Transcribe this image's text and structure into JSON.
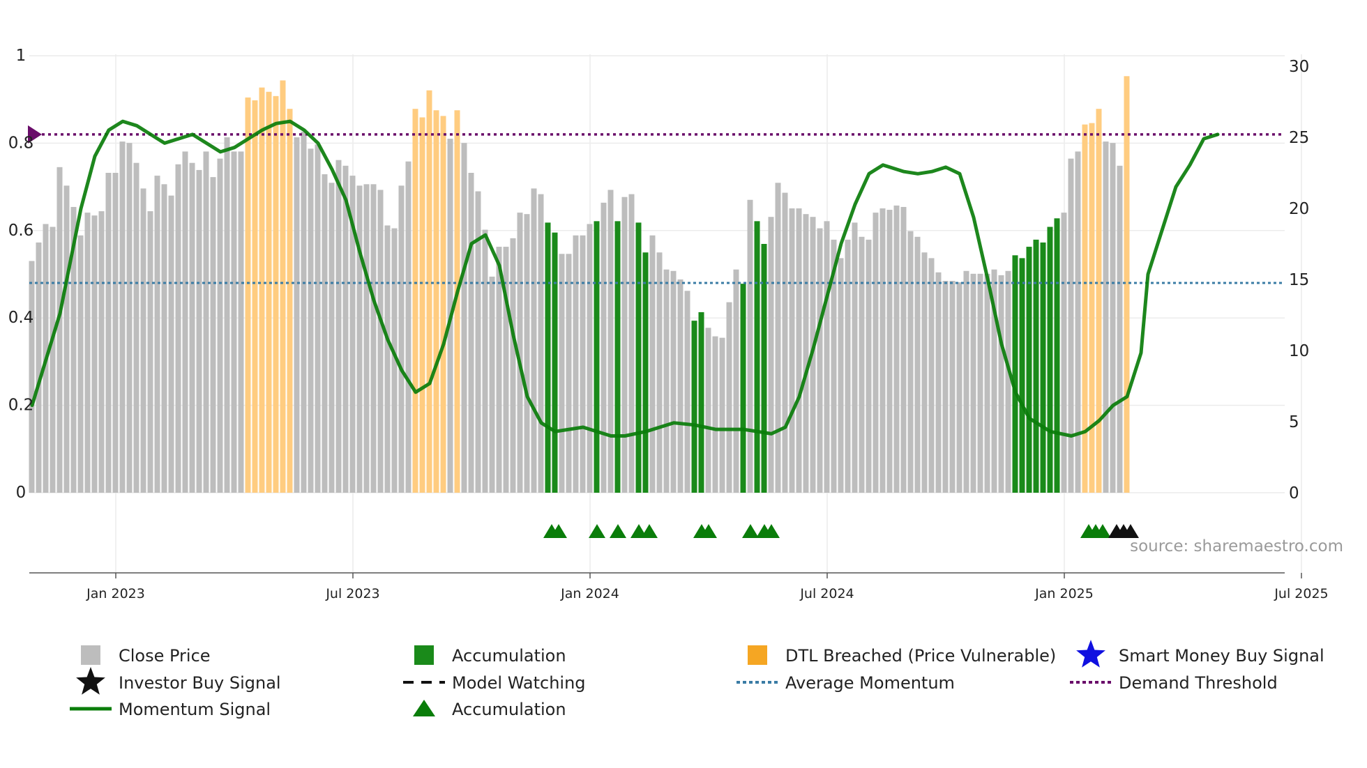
{
  "chart_data": {
    "type": "bar",
    "colors": {
      "close": "#bdbdbd",
      "accumulation": "#1a8a1a",
      "dtl": "#ffcc80",
      "dtl_legend": "#f5a623",
      "momentum": "#0a7d0a",
      "avg_momentum": "#3a7ca5",
      "demand": "#6a0d6a",
      "smart_money": "#1010e0",
      "investor": "#111111",
      "accum_marker": "#0a7d0a"
    },
    "left_axis": {
      "min": 0,
      "max": 1,
      "ticks": [
        "0",
        "0.2",
        "0.4",
        "0.6",
        "0.8",
        "1"
      ]
    },
    "right_axis": {
      "min": 0,
      "max": 30,
      "ticks": [
        "0",
        "5",
        "10",
        "15",
        "20",
        "25",
        "30"
      ]
    },
    "x_ticks": [
      "Jan 2023",
      "Jul 2023",
      "Jan 2024",
      "Jul 2024",
      "Jan 2025",
      "Jul 2025"
    ],
    "x_tick_weeks": [
      12,
      46,
      80,
      114,
      148,
      182
    ],
    "bars": [
      [
        16.3,
        0
      ],
      [
        17.6,
        0
      ],
      [
        18.9,
        0
      ],
      [
        18.7,
        0
      ],
      [
        22.9,
        0
      ],
      [
        21.6,
        0
      ],
      [
        20.1,
        0
      ],
      [
        18.1,
        0
      ],
      [
        19.7,
        0
      ],
      [
        19.5,
        0
      ],
      [
        19.8,
        0
      ],
      [
        22.5,
        0
      ],
      [
        22.5,
        0
      ],
      [
        24.7,
        0
      ],
      [
        24.6,
        0
      ],
      [
        23.2,
        0
      ],
      [
        21.4,
        0
      ],
      [
        19.8,
        0
      ],
      [
        22.3,
        0
      ],
      [
        21.7,
        0
      ],
      [
        20.9,
        0
      ],
      [
        23.1,
        0
      ],
      [
        24.0,
        0
      ],
      [
        23.2,
        0
      ],
      [
        22.7,
        0
      ],
      [
        24.0,
        0
      ],
      [
        22.2,
        0
      ],
      [
        23.5,
        0
      ],
      [
        25.0,
        0
      ],
      [
        24.0,
        0
      ],
      [
        24.0,
        0
      ],
      [
        27.8,
        2
      ],
      [
        27.6,
        2
      ],
      [
        28.5,
        2
      ],
      [
        28.2,
        2
      ],
      [
        27.9,
        2
      ],
      [
        29.0,
        2
      ],
      [
        27.0,
        2
      ],
      [
        25.0,
        0
      ],
      [
        25.4,
        0
      ],
      [
        24.2,
        0
      ],
      [
        24.5,
        0
      ],
      [
        22.4,
        0
      ],
      [
        21.8,
        0
      ],
      [
        23.4,
        0
      ],
      [
        23.0,
        0
      ],
      [
        22.3,
        0
      ],
      [
        21.6,
        0
      ],
      [
        21.7,
        0
      ],
      [
        21.7,
        0
      ],
      [
        21.3,
        0
      ],
      [
        18.8,
        0
      ],
      [
        18.6,
        0
      ],
      [
        21.6,
        0
      ],
      [
        23.3,
        0
      ],
      [
        27.0,
        2
      ],
      [
        26.4,
        2
      ],
      [
        28.3,
        2
      ],
      [
        26.9,
        2
      ],
      [
        26.5,
        2
      ],
      [
        24.9,
        0
      ],
      [
        26.9,
        2
      ],
      [
        24.6,
        0
      ],
      [
        22.5,
        0
      ],
      [
        21.2,
        0
      ],
      [
        18.5,
        0
      ],
      [
        15.2,
        0
      ],
      [
        17.3,
        0
      ],
      [
        17.3,
        0
      ],
      [
        17.9,
        0
      ],
      [
        19.7,
        0
      ],
      [
        19.6,
        0
      ],
      [
        21.4,
        0
      ],
      [
        21.0,
        0
      ],
      [
        19.0,
        1
      ],
      [
        18.3,
        1
      ],
      [
        16.8,
        0
      ],
      [
        16.8,
        0
      ],
      [
        18.1,
        0
      ],
      [
        18.1,
        0
      ],
      [
        18.9,
        0
      ],
      [
        19.1,
        1
      ],
      [
        20.4,
        0
      ],
      [
        21.3,
        0
      ],
      [
        19.1,
        1
      ],
      [
        20.8,
        0
      ],
      [
        21.0,
        0
      ],
      [
        19.0,
        1
      ],
      [
        16.9,
        1
      ],
      [
        18.1,
        0
      ],
      [
        16.9,
        0
      ],
      [
        15.7,
        0
      ],
      [
        15.6,
        0
      ],
      [
        15.0,
        0
      ],
      [
        14.2,
        0
      ],
      [
        12.1,
        1
      ],
      [
        12.7,
        1
      ],
      [
        11.6,
        0
      ],
      [
        11.0,
        0
      ],
      [
        10.9,
        0
      ],
      [
        13.4,
        0
      ],
      [
        15.7,
        0
      ],
      [
        14.7,
        1
      ],
      [
        20.6,
        0
      ],
      [
        19.1,
        1
      ],
      [
        17.5,
        1
      ],
      [
        19.4,
        0
      ],
      [
        21.8,
        0
      ],
      [
        21.1,
        0
      ],
      [
        20.0,
        0
      ],
      [
        20.0,
        0
      ],
      [
        19.6,
        0
      ],
      [
        19.4,
        0
      ],
      [
        18.6,
        0
      ],
      [
        19.1,
        0
      ],
      [
        17.8,
        0
      ],
      [
        16.5,
        0
      ],
      [
        17.8,
        0
      ],
      [
        19.0,
        0
      ],
      [
        18.0,
        0
      ],
      [
        17.8,
        0
      ],
      [
        19.7,
        0
      ],
      [
        20.0,
        0
      ],
      [
        19.9,
        0
      ],
      [
        20.2,
        0
      ],
      [
        20.1,
        0
      ],
      [
        18.4,
        0
      ],
      [
        18.0,
        0
      ],
      [
        16.9,
        0
      ],
      [
        16.5,
        0
      ],
      [
        15.5,
        0
      ],
      [
        14.9,
        0
      ],
      [
        14.9,
        0
      ],
      [
        14.8,
        0
      ],
      [
        15.6,
        0
      ],
      [
        15.4,
        0
      ],
      [
        15.4,
        0
      ],
      [
        15.4,
        0
      ],
      [
        15.7,
        0
      ],
      [
        15.3,
        0
      ],
      [
        15.6,
        0
      ],
      [
        16.7,
        1
      ],
      [
        16.5,
        1
      ],
      [
        17.3,
        1
      ],
      [
        17.8,
        1
      ],
      [
        17.6,
        1
      ],
      [
        18.7,
        1
      ],
      [
        19.3,
        1
      ],
      [
        19.7,
        0
      ],
      [
        23.5,
        0
      ],
      [
        24.0,
        0
      ],
      [
        25.9,
        2
      ],
      [
        26.0,
        2
      ],
      [
        27.0,
        2
      ],
      [
        24.7,
        0
      ],
      [
        24.6,
        0
      ],
      [
        23.0,
        0
      ],
      [
        29.3,
        2
      ]
    ],
    "momentum": [
      [
        0,
        0.2
      ],
      [
        4,
        0.41
      ],
      [
        7,
        0.65
      ],
      [
        9,
        0.77
      ],
      [
        11,
        0.83
      ],
      [
        13,
        0.85
      ],
      [
        15,
        0.84
      ],
      [
        17,
        0.82
      ],
      [
        19,
        0.8
      ],
      [
        21,
        0.81
      ],
      [
        23,
        0.82
      ],
      [
        25,
        0.8
      ],
      [
        27,
        0.78
      ],
      [
        29,
        0.79
      ],
      [
        31,
        0.81
      ],
      [
        33,
        0.83
      ],
      [
        35,
        0.845
      ],
      [
        37,
        0.85
      ],
      [
        39,
        0.83
      ],
      [
        41,
        0.8
      ],
      [
        43,
        0.74
      ],
      [
        45,
        0.67
      ],
      [
        47,
        0.55
      ],
      [
        49,
        0.44
      ],
      [
        51,
        0.35
      ],
      [
        53,
        0.28
      ],
      [
        55,
        0.23
      ],
      [
        57,
        0.25
      ],
      [
        59,
        0.34
      ],
      [
        61,
        0.46
      ],
      [
        63,
        0.57
      ],
      [
        65,
        0.59
      ],
      [
        67,
        0.52
      ],
      [
        69,
        0.36
      ],
      [
        71,
        0.22
      ],
      [
        73,
        0.16
      ],
      [
        75,
        0.14
      ],
      [
        79,
        0.15
      ],
      [
        83,
        0.13
      ],
      [
        85,
        0.13
      ],
      [
        88,
        0.14
      ],
      [
        92,
        0.16
      ],
      [
        95,
        0.155
      ],
      [
        98,
        0.145
      ],
      [
        102,
        0.145
      ],
      [
        104,
        0.14
      ],
      [
        106,
        0.135
      ],
      [
        108,
        0.15
      ],
      [
        110,
        0.22
      ],
      [
        112,
        0.33
      ],
      [
        114,
        0.45
      ],
      [
        116,
        0.57
      ],
      [
        118,
        0.66
      ],
      [
        120,
        0.73
      ],
      [
        122,
        0.75
      ],
      [
        125,
        0.735
      ],
      [
        127,
        0.73
      ],
      [
        129,
        0.735
      ],
      [
        131,
        0.745
      ],
      [
        133,
        0.73
      ],
      [
        135,
        0.63
      ],
      [
        137,
        0.49
      ],
      [
        139,
        0.34
      ],
      [
        141,
        0.23
      ],
      [
        143,
        0.17
      ],
      [
        146,
        0.14
      ],
      [
        149,
        0.13
      ],
      [
        151,
        0.14
      ],
      [
        153,
        0.165
      ],
      [
        155,
        0.2
      ],
      [
        157,
        0.22
      ],
      [
        159,
        0.32
      ],
      [
        160,
        0.5
      ],
      [
        162,
        0.6
      ],
      [
        164,
        0.7
      ],
      [
        166,
        0.75
      ],
      [
        168,
        0.81
      ],
      [
        170,
        0.82
      ]
    ],
    "avg_momentum": 0.48,
    "demand_threshold": 0.82,
    "accumulation_markers": [
      74.5,
      75.5,
      81,
      84,
      87,
      88.5,
      96,
      97,
      103,
      105,
      106,
      151.5,
      152.5,
      153.5
    ],
    "investor_markers": [
      155.5,
      156.5,
      157.5
    ],
    "watermark": "source: sharemaestro.com",
    "legend": [
      {
        "label": "Close Price",
        "kind": "square",
        "color": "#bdbdbd"
      },
      {
        "label": "Accumulation",
        "kind": "square",
        "color": "#1a8a1a"
      },
      {
        "label": "DTL Breached (Price Vulnerable)",
        "kind": "square",
        "color": "#f5a623"
      },
      {
        "label": "Smart Money Buy Signal",
        "kind": "star",
        "color": "#1010e0"
      },
      {
        "label": "Investor Buy Signal",
        "kind": "star",
        "color": "#111111"
      },
      {
        "label": "Model Watching",
        "kind": "dash",
        "color": "#111111"
      },
      {
        "label": "Average Momentum",
        "kind": "dot",
        "color": "#3a7ca5"
      },
      {
        "label": "Demand Threshold",
        "kind": "dot",
        "color": "#6a0d6a"
      },
      {
        "label": "Momentum Signal",
        "kind": "line",
        "color": "#0a7d0a"
      },
      {
        "label": "Accumulation",
        "kind": "triangle",
        "color": "#0a7d0a"
      }
    ]
  }
}
